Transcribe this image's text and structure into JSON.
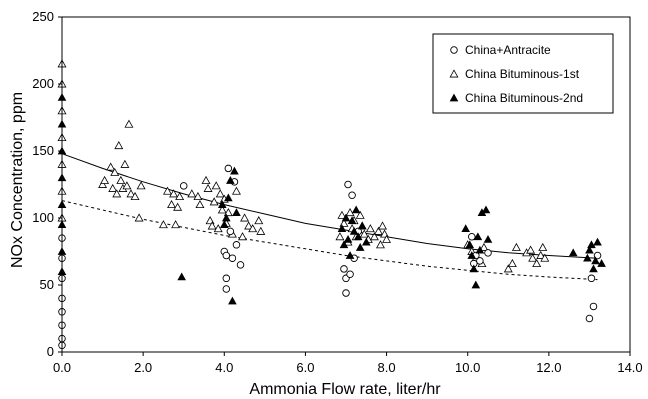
{
  "chart_data": {
    "type": "scatter",
    "xlabel": "Ammonia Flow rate, liter/hr",
    "ylabel": "NOx  Concentration, ppm",
    "xlim": [
      0,
      14
    ],
    "ylim": [
      0,
      250
    ],
    "x_ticks": [
      "0.0",
      "2.0",
      "4.0",
      "6.0",
      "8.0",
      "10.0",
      "12.0",
      "14.0"
    ],
    "y_ticks": [
      "0",
      "50",
      "100",
      "150",
      "200",
      "250"
    ],
    "grid": false,
    "legend_position": "top-right",
    "series": [
      {
        "name": "China+Antracite",
        "marker": "open-circle",
        "points": [
          [
            0.0,
            5
          ],
          [
            0.0,
            10
          ],
          [
            0.0,
            20
          ],
          [
            0.0,
            30
          ],
          [
            0.0,
            40
          ],
          [
            0.0,
            55
          ],
          [
            0.0,
            70
          ],
          [
            0.0,
            85
          ],
          [
            3.0,
            124
          ],
          [
            4.0,
            75
          ],
          [
            4.05,
            72
          ],
          [
            4.05,
            55
          ],
          [
            4.05,
            47
          ],
          [
            4.1,
            137
          ],
          [
            4.15,
            90
          ],
          [
            4.2,
            70
          ],
          [
            4.25,
            127
          ],
          [
            4.3,
            80
          ],
          [
            4.4,
            65
          ],
          [
            6.95,
            62
          ],
          [
            7.0,
            55
          ],
          [
            7.0,
            44
          ],
          [
            7.05,
            125
          ],
          [
            7.1,
            58
          ],
          [
            7.15,
            117
          ],
          [
            7.2,
            70
          ],
          [
            7.3,
            90
          ],
          [
            10.1,
            86
          ],
          [
            10.15,
            66
          ],
          [
            10.2,
            72
          ],
          [
            10.3,
            68
          ],
          [
            10.5,
            74
          ],
          [
            13.0,
            25
          ],
          [
            13.05,
            55
          ],
          [
            13.1,
            34
          ],
          [
            13.2,
            72
          ]
        ]
      },
      {
        "name": "China Bituminous-1st",
        "marker": "open-triangle",
        "points": [
          [
            0.0,
            100
          ],
          [
            0.0,
            120
          ],
          [
            0.0,
            140
          ],
          [
            0.0,
            160
          ],
          [
            0.0,
            180
          ],
          [
            0.0,
            200
          ],
          [
            0.0,
            215
          ],
          [
            1.0,
            125
          ],
          [
            1.05,
            128
          ],
          [
            1.2,
            138
          ],
          [
            1.25,
            122
          ],
          [
            1.3,
            134
          ],
          [
            1.35,
            118
          ],
          [
            1.4,
            154
          ],
          [
            1.45,
            128
          ],
          [
            1.5,
            122
          ],
          [
            1.55,
            140
          ],
          [
            1.6,
            124
          ],
          [
            1.65,
            170
          ],
          [
            1.7,
            118
          ],
          [
            1.8,
            116
          ],
          [
            1.9,
            100
          ],
          [
            1.95,
            124
          ],
          [
            2.5,
            95
          ],
          [
            2.6,
            120
          ],
          [
            2.7,
            110
          ],
          [
            2.75,
            118
          ],
          [
            2.8,
            95
          ],
          [
            2.85,
            108
          ],
          [
            2.9,
            116
          ],
          [
            3.2,
            118
          ],
          [
            3.35,
            116
          ],
          [
            3.4,
            110
          ],
          [
            3.55,
            128
          ],
          [
            3.6,
            122
          ],
          [
            3.65,
            98
          ],
          [
            3.7,
            94
          ],
          [
            3.75,
            112
          ],
          [
            3.8,
            124
          ],
          [
            3.85,
            92
          ],
          [
            3.9,
            118
          ],
          [
            3.95,
            106
          ],
          [
            4.0,
            114
          ],
          [
            4.05,
            96
          ],
          [
            4.1,
            104
          ],
          [
            4.2,
            88
          ],
          [
            4.3,
            120
          ],
          [
            4.45,
            86
          ],
          [
            4.5,
            100
          ],
          [
            4.6,
            94
          ],
          [
            4.7,
            92
          ],
          [
            4.85,
            98
          ],
          [
            4.9,
            90
          ],
          [
            6.85,
            86
          ],
          [
            6.9,
            102
          ],
          [
            6.95,
            96
          ],
          [
            7.05,
            82
          ],
          [
            7.1,
            104
          ],
          [
            7.15,
            92
          ],
          [
            7.2,
            98
          ],
          [
            7.25,
            86
          ],
          [
            7.35,
            102
          ],
          [
            7.4,
            94
          ],
          [
            7.45,
            88
          ],
          [
            7.55,
            84
          ],
          [
            7.6,
            92
          ],
          [
            7.7,
            86
          ],
          [
            7.8,
            90
          ],
          [
            7.85,
            80
          ],
          [
            7.9,
            94
          ],
          [
            7.95,
            88
          ],
          [
            8.0,
            84
          ],
          [
            10.0,
            80
          ],
          [
            10.1,
            75
          ],
          [
            10.2,
            70
          ],
          [
            10.35,
            66
          ],
          [
            10.4,
            78
          ],
          [
            11.0,
            62
          ],
          [
            11.1,
            66
          ],
          [
            11.2,
            78
          ],
          [
            11.45,
            74
          ],
          [
            11.55,
            76
          ],
          [
            11.6,
            70
          ],
          [
            11.7,
            66
          ],
          [
            11.8,
            72
          ],
          [
            11.85,
            78
          ],
          [
            11.9,
            70
          ]
        ]
      },
      {
        "name": "China Bituminous-2nd",
        "marker": "filled-triangle",
        "points": [
          [
            0.0,
            60
          ],
          [
            0.0,
            75
          ],
          [
            0.0,
            95
          ],
          [
            0.0,
            110
          ],
          [
            0.0,
            130
          ],
          [
            0.0,
            150
          ],
          [
            0.0,
            170
          ],
          [
            0.0,
            190
          ],
          [
            2.95,
            56
          ],
          [
            3.95,
            110
          ],
          [
            4.0,
            95
          ],
          [
            4.05,
            100
          ],
          [
            4.1,
            115
          ],
          [
            4.15,
            128
          ],
          [
            4.2,
            38
          ],
          [
            4.25,
            135
          ],
          [
            4.3,
            104
          ],
          [
            6.9,
            92
          ],
          [
            6.95,
            80
          ],
          [
            7.0,
            100
          ],
          [
            7.05,
            84
          ],
          [
            7.1,
            72
          ],
          [
            7.15,
            98
          ],
          [
            7.2,
            90
          ],
          [
            7.25,
            106
          ],
          [
            7.3,
            86
          ],
          [
            7.35,
            78
          ],
          [
            7.4,
            94
          ],
          [
            7.5,
            82
          ],
          [
            9.95,
            92
          ],
          [
            10.05,
            80
          ],
          [
            10.1,
            72
          ],
          [
            10.15,
            62
          ],
          [
            10.2,
            50
          ],
          [
            10.25,
            86
          ],
          [
            10.3,
            76
          ],
          [
            10.35,
            104
          ],
          [
            10.45,
            106
          ],
          [
            10.5,
            84
          ],
          [
            12.6,
            74
          ],
          [
            12.95,
            70
          ],
          [
            13.0,
            76
          ],
          [
            13.05,
            80
          ],
          [
            13.1,
            62
          ],
          [
            13.15,
            68
          ],
          [
            13.2,
            82
          ],
          [
            13.3,
            66
          ]
        ]
      }
    ],
    "fit_curves": [
      {
        "style": "solid",
        "x": [
          0,
          1,
          2,
          3,
          4,
          5,
          6,
          7,
          8,
          9,
          10,
          11,
          12,
          13.2
        ],
        "y": [
          148,
          137,
          127,
          118,
          110,
          103,
          96,
          91,
          86,
          81,
          77,
          74,
          72,
          70
        ]
      },
      {
        "style": "dashed",
        "x": [
          0,
          1,
          2,
          3,
          4,
          5,
          6,
          7,
          8,
          9,
          10,
          11,
          12,
          13.2
        ],
        "y": [
          113,
          106,
          99,
          93,
          87,
          82,
          77,
          72,
          68,
          64,
          61,
          58,
          56,
          54
        ]
      }
    ]
  }
}
